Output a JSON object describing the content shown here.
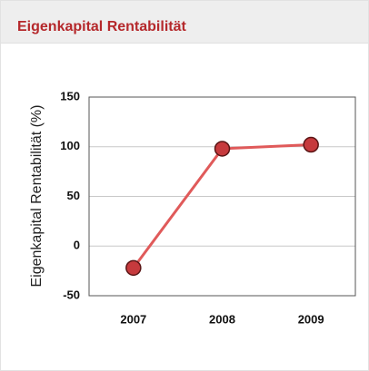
{
  "header": {
    "title": "Eigenkapital Rentabilität"
  },
  "chart_data": {
    "type": "line",
    "ylabel": "Eigenkapital Rentabilität (%)",
    "categories": [
      "2007",
      "2008",
      "2009"
    ],
    "series": [
      {
        "color": "#e05a5a",
        "values": [
          -22,
          98,
          102
        ]
      }
    ],
    "ylim": [
      -50,
      150
    ],
    "yticks": [
      -50,
      0,
      50,
      100,
      150
    ],
    "grid": true
  }
}
